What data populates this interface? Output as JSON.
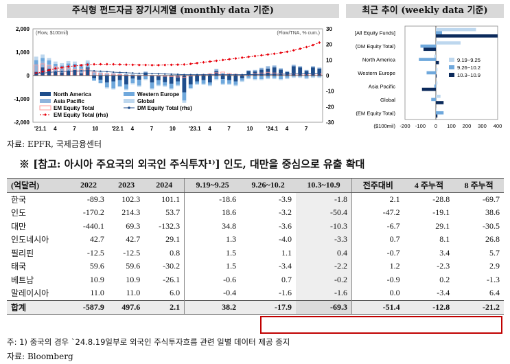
{
  "titles": {
    "left": "주식형 펀드자금 장기시계열 (monthly data 기준)",
    "right": "최근 추이 (weekly data 기준)"
  },
  "chart_data": [
    {
      "type": "bar",
      "title": "주식형 펀드자금 장기시계열 (monthly data 기준)",
      "y_left_label": "(Flow, $100mil)",
      "y_right_label": "(Flow/TNA, % cum.)",
      "ylim_left": [
        -2000,
        2000
      ],
      "ylim_right": [
        -30,
        30
      ],
      "y_left_ticks": [
        "2,000",
        "1,000",
        "0",
        "-1,000",
        "-2,000"
      ],
      "y_right_ticks": [
        "30",
        "20",
        "10",
        "0",
        "-10",
        "-20",
        "-30"
      ],
      "x_tick_labels": [
        "'21.1",
        "4",
        "7",
        "10",
        "'22.1",
        "4",
        "7",
        "10",
        "'23.1",
        "4",
        "7",
        "10",
        "'24.1",
        "4",
        "7"
      ],
      "months": 45,
      "series": [
        {
          "name": "North America",
          "color": "#1f4e8c",
          "values": [
            160,
            350,
            300,
            150,
            130,
            200,
            250,
            100,
            350,
            -120,
            -180,
            -300,
            -250,
            -200,
            -380,
            -130,
            -180,
            130,
            -300,
            -200,
            -280,
            -350,
            -250,
            -720,
            -380,
            -250,
            -200,
            -300,
            200,
            -150,
            -200,
            -250,
            -120,
            200,
            180,
            250,
            300,
            350,
            250,
            150,
            400,
            350,
            200,
            350,
            300
          ]
        },
        {
          "name": "Asia Pacific",
          "color": "#8fb3dc",
          "values": [
            300,
            250,
            200,
            250,
            200,
            220,
            150,
            200,
            150,
            130,
            120,
            100,
            100,
            80,
            60,
            50,
            40,
            40,
            30,
            20,
            20,
            20,
            10,
            10,
            20,
            40,
            50,
            60,
            80,
            100,
            60,
            40,
            30,
            20,
            60,
            80,
            100,
            80,
            60,
            40,
            60,
            50,
            40,
            50,
            40
          ]
        },
        {
          "name": "Western Europe",
          "color": "#6fa8dc",
          "values": [
            200,
            150,
            150,
            100,
            100,
            100,
            100,
            100,
            50,
            -100,
            -150,
            -200,
            -300,
            -250,
            -200,
            -200,
            -250,
            -150,
            -250,
            -200,
            -150,
            -200,
            -150,
            -350,
            -150,
            -100,
            -150,
            -100,
            -150,
            -200,
            -150,
            -150,
            -100,
            -100,
            -150,
            -150,
            -100,
            -100,
            -150,
            -100,
            -50,
            -50,
            -100,
            -50,
            -50
          ]
        },
        {
          "name": "Global",
          "color": "#bdd7ee",
          "values": [
            150,
            150,
            100,
            100,
            100,
            100,
            100,
            100,
            100,
            50,
            50,
            -50,
            -50,
            -50,
            -50,
            -50,
            -50,
            -50,
            -50,
            -50,
            -50,
            -50,
            -50,
            -100,
            -50,
            -50,
            -50,
            -50,
            -50,
            -50,
            -50,
            -50,
            -50,
            -50,
            -50,
            -50,
            -50,
            -50,
            -50,
            -50,
            -50,
            -50,
            -50,
            -50,
            -50
          ]
        },
        {
          "name": "EM Equity Total",
          "color": "#ff9999",
          "values": [
            450,
            500,
            420,
            380,
            320,
            300,
            250,
            250,
            280,
            150,
            100,
            80,
            60,
            40,
            20,
            10,
            0,
            10,
            0,
            -20,
            -30,
            -40,
            -60,
            -80,
            -20,
            30,
            50,
            80,
            120,
            150,
            100,
            60,
            40,
            20,
            80,
            110,
            140,
            110,
            80,
            60,
            80,
            70,
            60,
            80,
            70
          ]
        },
        {
          "name": "EM Equity Total (rhs)",
          "axis": "right",
          "color": "#e8000b",
          "values": [
            1.5,
            2.5,
            3.5,
            4.5,
            5.2,
            5.8,
            6.2,
            6.6,
            7.0,
            7.2,
            7.3,
            7.3,
            7.2,
            7.1,
            7.0,
            6.9,
            6.8,
            6.8,
            6.7,
            6.7,
            6.8,
            6.9,
            7.0,
            7.1,
            7.5,
            8.0,
            8.5,
            9.0,
            9.5,
            10.0,
            10.5,
            11.0,
            11.5,
            12.0,
            12.5,
            13.0,
            13.5,
            14.0,
            14.6,
            15.3,
            16.2,
            17.2,
            18.3,
            19.6,
            21.2
          ]
        },
        {
          "name": "DM Equity Total (rhs)",
          "axis": "right",
          "color": "#1f4e8c",
          "values": [
            0.8,
            1.5,
            2.0,
            2.4,
            2.6,
            2.8,
            2.9,
            3.0,
            3.1,
            3.0,
            2.8,
            2.5,
            2.2,
            2.0,
            1.8,
            1.6,
            1.4,
            1.3,
            1.2,
            1.1,
            1.0,
            0.9,
            0.8,
            0.6,
            0.6,
            0.6,
            0.6,
            0.6,
            0.6,
            0.6,
            0.6,
            0.6,
            0.6,
            0.7,
            0.7,
            0.8,
            0.8,
            0.8,
            0.9,
            0.9,
            1.0,
            1.0,
            1.1,
            1.1,
            1.2
          ]
        }
      ]
    },
    {
      "type": "bar",
      "orientation": "horizontal",
      "title": "최근 추이 (weekly data 기준)",
      "xlabel": "($100mil)",
      "xlim": [
        -200,
        400
      ],
      "x_ticks": [
        "-200",
        "-100",
        "0",
        "100",
        "200",
        "300",
        "400"
      ],
      "legend": "right",
      "categories": [
        "[All Equity Funds]",
        "(DM Equity Total)",
        "North America",
        "Western Europe",
        "Asia Pacific",
        "Global",
        "(EM Equity Total)"
      ],
      "series": [
        {
          "name": "9.19~9.25",
          "color": "#bdd7ee",
          "values": [
            260,
            160,
            -10,
            10,
            10,
            30,
            5
          ]
        },
        {
          "name": "9.26~10.2",
          "color": "#6fa8dc",
          "values": [
            40,
            -100,
            -110,
            -60,
            -10,
            -30,
            50
          ]
        },
        {
          "name": "10.3~10.9",
          "color": "#0b2a5b",
          "values": [
            400,
            -80,
            20,
            5,
            -90,
            50,
            10
          ]
        }
      ]
    }
  ],
  "source1": "자료: EPFR, 국제금융센터",
  "ref_title": "※ [참고: 아시아 주요국의 외국인 주식투자¹⁾] 인도, 대만을 중심으로 유출 확대",
  "table": {
    "headers": [
      "(억달러)",
      "2022",
      "2023",
      "2024",
      "9.19~9.25",
      "9.26~10.2",
      "10.3~10.9",
      "전주대비",
      "4 주누적",
      "8 주누적"
    ],
    "rows": [
      [
        "한국",
        "-89.3",
        "102.3",
        "101.1",
        "-18.6",
        "-3.9",
        "-1.8",
        "2.1",
        "-28.8",
        "-69.7"
      ],
      [
        "인도",
        "-170.2",
        "214.3",
        "53.7",
        "18.6",
        "-3.2",
        "-50.4",
        "-47.2",
        "-19.1",
        "38.6"
      ],
      [
        "대만",
        "-440.1",
        "69.3",
        "-132.3",
        "34.8",
        "-3.6",
        "-10.3",
        "-6.7",
        "29.1",
        "-30.5"
      ],
      [
        "인도네시아",
        "42.7",
        "42.7",
        "29.1",
        "1.3",
        "-4.0",
        "-3.3",
        "0.7",
        "8.1",
        "26.8"
      ],
      [
        "필리핀",
        "-12.5",
        "-12.5",
        "0.8",
        "1.5",
        "1.1",
        "0.4",
        "-0.7",
        "3.4",
        "5.7"
      ],
      [
        "태국",
        "59.6",
        "59.6",
        "-30.2",
        "1.5",
        "-3.4",
        "-2.2",
        "1.2",
        "-2.3",
        "2.9"
      ],
      [
        "베트남",
        "10.9",
        "10.9",
        "-26.1",
        "-0.6",
        "0.7",
        "-0.2",
        "-0.9",
        "0.2",
        "-1.3"
      ],
      [
        "말레이시아",
        "11.0",
        "11.0",
        "6.0",
        "-0.4",
        "-1.6",
        "-1.6",
        "0.0",
        "-3.4",
        "6.4"
      ]
    ],
    "total": [
      "합계",
      "-587.9",
      "497.6",
      "2.1",
      "38.2",
      "-17.9",
      "-69.3",
      "-51.4",
      "-12.8",
      "-21.2"
    ]
  },
  "note1": "주: 1) 중국의 경우 `24.8.19일부로 외국인 주식투자흐름 관련 일별 데이터 제공 중지",
  "source2": "자료: Bloomberg"
}
